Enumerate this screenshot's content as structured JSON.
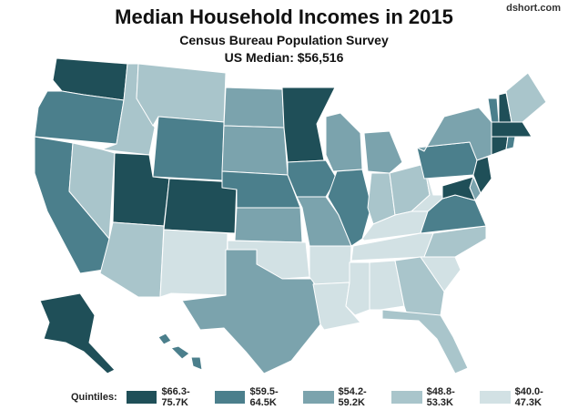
{
  "title": "Median Household Incomes in 2015",
  "subtitle": "Census Bureau Population Survey",
  "median_label": "US Median: $56,516",
  "credit": "dshort.com",
  "legend": {
    "label": "Quintiles:",
    "items": [
      {
        "label": "$66.3-75.7K",
        "color": "#1f4f58"
      },
      {
        "label": "$59.5-64.5K",
        "color": "#4b7f8c"
      },
      {
        "label": "$54.2-59.2K",
        "color": "#7ba3ad"
      },
      {
        "label": "$48.8-53.3K",
        "color": "#a9c5cb"
      },
      {
        "label": "$40.0-47.3K",
        "color": "#d2e1e4"
      }
    ]
  },
  "states": [
    {
      "id": "WA",
      "quintile": 1
    },
    {
      "id": "OR",
      "quintile": 2
    },
    {
      "id": "CA",
      "quintile": 2
    },
    {
      "id": "ID",
      "quintile": 4
    },
    {
      "id": "NV",
      "quintile": 4
    },
    {
      "id": "MT",
      "quintile": 4
    },
    {
      "id": "WY",
      "quintile": 2
    },
    {
      "id": "UT",
      "quintile": 1
    },
    {
      "id": "CO",
      "quintile": 1
    },
    {
      "id": "AZ",
      "quintile": 4
    },
    {
      "id": "NM",
      "quintile": 5
    },
    {
      "id": "ND",
      "quintile": 3
    },
    {
      "id": "SD",
      "quintile": 3
    },
    {
      "id": "NE",
      "quintile": 2
    },
    {
      "id": "KS",
      "quintile": 3
    },
    {
      "id": "OK",
      "quintile": 5
    },
    {
      "id": "TX",
      "quintile": 3
    },
    {
      "id": "MN",
      "quintile": 1
    },
    {
      "id": "IA",
      "quintile": 2
    },
    {
      "id": "MO",
      "quintile": 3
    },
    {
      "id": "AR",
      "quintile": 5
    },
    {
      "id": "LA",
      "quintile": 5
    },
    {
      "id": "WI",
      "quintile": 3
    },
    {
      "id": "IL",
      "quintile": 2
    },
    {
      "id": "MI",
      "quintile": 3
    },
    {
      "id": "IN",
      "quintile": 4
    },
    {
      "id": "OH",
      "quintile": 4
    },
    {
      "id": "KY",
      "quintile": 5
    },
    {
      "id": "TN",
      "quintile": 5
    },
    {
      "id": "MS",
      "quintile": 5
    },
    {
      "id": "AL",
      "quintile": 5
    },
    {
      "id": "GA",
      "quintile": 4
    },
    {
      "id": "FL",
      "quintile": 4
    },
    {
      "id": "SC",
      "quintile": 5
    },
    {
      "id": "NC",
      "quintile": 4
    },
    {
      "id": "VA",
      "quintile": 2
    },
    {
      "id": "WV",
      "quintile": 5
    },
    {
      "id": "PA",
      "quintile": 2
    },
    {
      "id": "NY",
      "quintile": 3
    },
    {
      "id": "VT",
      "quintile": 2
    },
    {
      "id": "NH",
      "quintile": 1
    },
    {
      "id": "ME",
      "quintile": 4
    },
    {
      "id": "MA",
      "quintile": 1
    },
    {
      "id": "CT",
      "quintile": 1
    },
    {
      "id": "RI",
      "quintile": 2
    },
    {
      "id": "NJ",
      "quintile": 1
    },
    {
      "id": "DE",
      "quintile": 3
    },
    {
      "id": "MD",
      "quintile": 1
    },
    {
      "id": "AK",
      "quintile": 1
    },
    {
      "id": "HI",
      "quintile": 2
    }
  ]
}
